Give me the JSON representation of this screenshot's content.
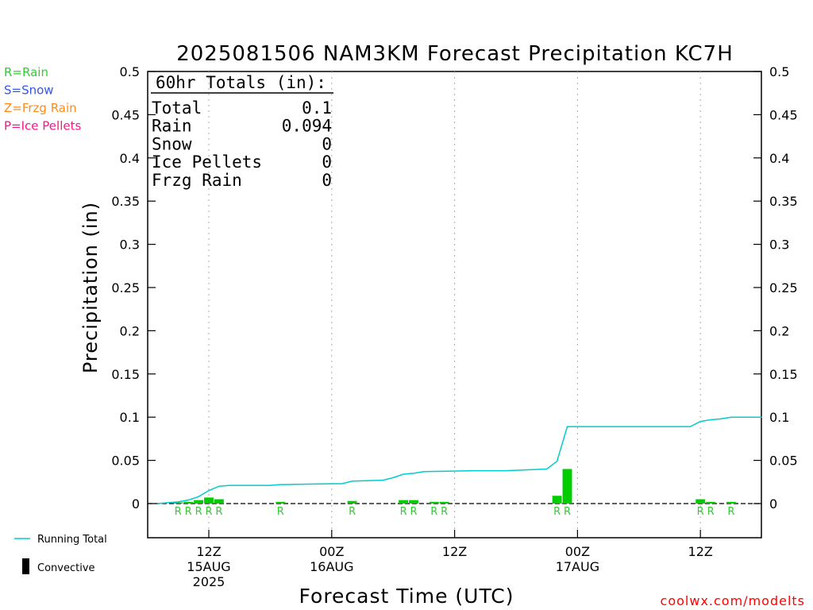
{
  "chart_data": {
    "type": "bar",
    "title": "2025081506 NAM3KM Forecast Precipitation KC7H",
    "ylabel": "Precipitation (in)",
    "xlabel": "Forecast Time (UTC)",
    "ylim": [
      -0.04,
      0.5
    ],
    "xlim": [
      4,
      64
    ],
    "x_unit": "forecast hour from 2025081506",
    "yticks": [
      "0.5",
      "0.45",
      "0.4",
      "0.35",
      "0.3",
      "0.25",
      "0.2",
      "0.15",
      "0.1",
      "0.05",
      "0"
    ],
    "yticks_right": [
      "0.5",
      "0.45",
      "0.4",
      "0.35",
      "0.3",
      "0.25",
      "0.2",
      "0.15",
      "0.1",
      "0.05",
      "0"
    ],
    "xticks": [
      {
        "hour": 6,
        "label": "12Z",
        "date": "15AUG",
        "year": "2025"
      },
      {
        "hour": 18,
        "label": "00Z",
        "date": "16AUG",
        "year": ""
      },
      {
        "hour": 30,
        "label": "12Z",
        "date": "",
        "year": ""
      },
      {
        "hour": 42,
        "label": "00Z",
        "date": "17AUG",
        "year": ""
      },
      {
        "hour": 54,
        "label": "12Z",
        "date": "",
        "year": ""
      }
    ],
    "grid": "vertical dotted at tick hours",
    "hourly_precip": [
      {
        "hour": 3,
        "value": 0.001,
        "ptype": "R"
      },
      {
        "hour": 4,
        "value": 0.002,
        "ptype": "R"
      },
      {
        "hour": 5,
        "value": 0.004,
        "ptype": "R"
      },
      {
        "hour": 6,
        "value": 0.007,
        "ptype": "R"
      },
      {
        "hour": 7,
        "value": 0.005,
        "ptype": "R"
      },
      {
        "hour": 13,
        "value": 0.002,
        "ptype": "R"
      },
      {
        "hour": 20,
        "value": 0.003,
        "ptype": "R"
      },
      {
        "hour": 25,
        "value": 0.004,
        "ptype": "R"
      },
      {
        "hour": 26,
        "value": 0.004,
        "ptype": "R"
      },
      {
        "hour": 28,
        "value": 0.002,
        "ptype": "R"
      },
      {
        "hour": 29,
        "value": 0.002,
        "ptype": "R"
      },
      {
        "hour": 40,
        "value": 0.009,
        "ptype": "R"
      },
      {
        "hour": 41,
        "value": 0.04,
        "ptype": "R"
      },
      {
        "hour": 54,
        "value": 0.005,
        "ptype": "R"
      },
      {
        "hour": 55,
        "value": 0.002,
        "ptype": "R"
      },
      {
        "hour": 57,
        "value": 0.002,
        "ptype": "R"
      }
    ],
    "running_total": [
      [
        1,
        0
      ],
      [
        2,
        0.001
      ],
      [
        3,
        0.002
      ],
      [
        4,
        0.004
      ],
      [
        5,
        0.008
      ],
      [
        6,
        0.015
      ],
      [
        7,
        0.02
      ],
      [
        8,
        0.021
      ],
      [
        12,
        0.021
      ],
      [
        13,
        0.022
      ],
      [
        18,
        0.023
      ],
      [
        19,
        0.023
      ],
      [
        20,
        0.026
      ],
      [
        23,
        0.027
      ],
      [
        24,
        0.03
      ],
      [
        25,
        0.034
      ],
      [
        26,
        0.035
      ],
      [
        27,
        0.037
      ],
      [
        32,
        0.038
      ],
      [
        35,
        0.038
      ],
      [
        39,
        0.04
      ],
      [
        40,
        0.049
      ],
      [
        41,
        0.089
      ],
      [
        53,
        0.089
      ],
      [
        54,
        0.095
      ],
      [
        55,
        0.097
      ],
      [
        56,
        0.098
      ],
      [
        57,
        0.1
      ],
      [
        60,
        0.1
      ]
    ],
    "totals": {
      "header": "60hr Totals (in):",
      "rows": [
        {
          "label": "Total",
          "value": "0.1"
        },
        {
          "label": "Rain",
          "value": "0.094"
        },
        {
          "label": "Snow",
          "value": "0"
        },
        {
          "label": "Ice Pellets",
          "value": "0"
        },
        {
          "label": "Frzg Rain",
          "value": "0"
        }
      ]
    },
    "ptype_legend": [
      {
        "text": "R=Rain",
        "color": "#33cc33"
      },
      {
        "text": "S=Snow",
        "color": "#3355ee"
      },
      {
        "text": "Z=Frzg Rain",
        "color": "#ff8c1a"
      },
      {
        "text": "P=Ice Pellets",
        "color": "#ee1a8c"
      }
    ],
    "series_legend": [
      {
        "name": "Running Total",
        "color": "#00cccc",
        "kind": "line"
      },
      {
        "name": "Convective",
        "color": "#000000",
        "kind": "bar"
      }
    ],
    "colors": {
      "rain_bar": "#00cc00",
      "rain_label": "#33cc33",
      "running_total": "#00cccc"
    },
    "credit": "coolwx.com/modelts",
    "credit_color": "#ff0000"
  }
}
